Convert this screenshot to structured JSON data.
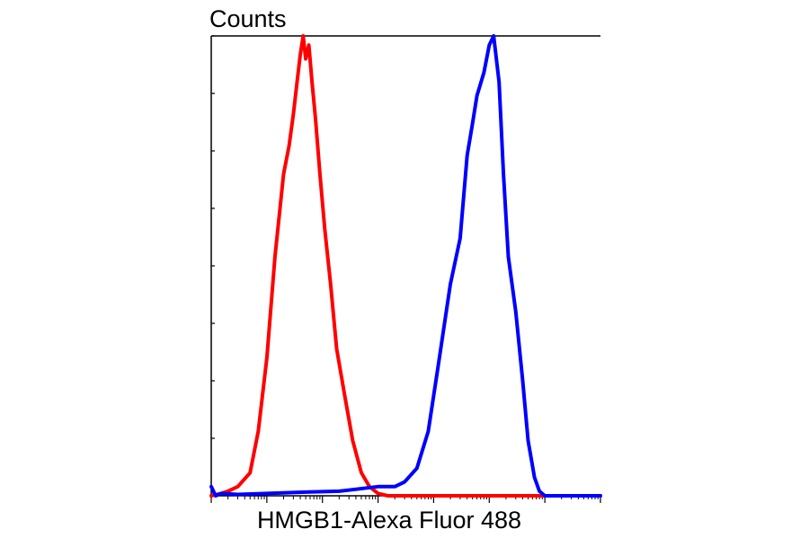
{
  "chart_data": {
    "type": "line",
    "title": "",
    "xlabel": "HMGB1-Alexa Fluor 488",
    "ylabel": "Counts",
    "x_scale": "log",
    "xlim": [
      1,
      10000000
    ],
    "ylim": [
      0,
      100
    ],
    "y_tick_labels": "none",
    "grid": false,
    "legend": "none",
    "series": [
      {
        "color": "#ff0000",
        "x": [
          1,
          1.5,
          2,
          3,
          5,
          7,
          10,
          14,
          20,
          25,
          30,
          35,
          40,
          45,
          50,
          57,
          65,
          75,
          90,
          110,
          140,
          180,
          250,
          350,
          500,
          700,
          1000,
          1500,
          2500,
          5000,
          100000,
          10000000
        ],
        "y": [
          0,
          0.5,
          1,
          2,
          5,
          14,
          30,
          52,
          70,
          76,
          83,
          90,
          96,
          100,
          95,
          98,
          90,
          82,
          70,
          58,
          46,
          32,
          22,
          12,
          5,
          2,
          0.5,
          0,
          0,
          0,
          0,
          0
        ]
      },
      {
        "color": "#0000ff",
        "x": [
          1,
          1.2,
          1.5,
          3,
          10,
          50,
          200,
          1000,
          2000,
          3000,
          5000,
          8000,
          12000,
          20000,
          30000,
          40000,
          50000,
          60000,
          80000,
          100000,
          120000,
          150000,
          180000,
          220000,
          300000,
          400000,
          500000,
          650000,
          800000,
          1000000,
          2000000,
          10000000
        ],
        "y": [
          2,
          0,
          0.5,
          0.3,
          0.5,
          0.8,
          1,
          2,
          2,
          3,
          6,
          14,
          28,
          46,
          56,
          74,
          81,
          87,
          92,
          98,
          100,
          90,
          70,
          52,
          40,
          25,
          12,
          4,
          1,
          0,
          0,
          0
        ]
      }
    ]
  }
}
